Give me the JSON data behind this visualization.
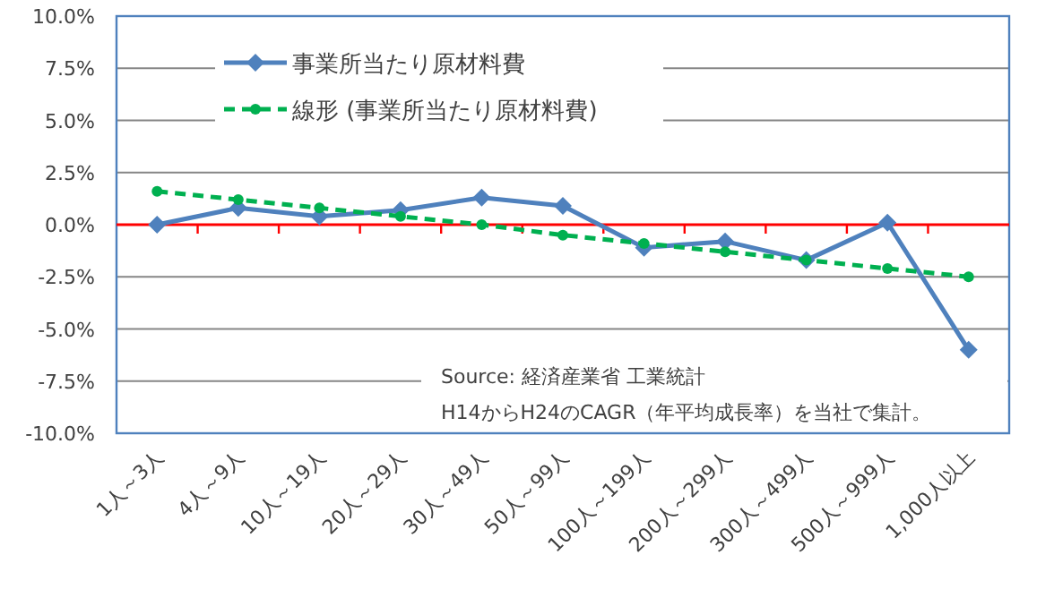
{
  "chart_data": {
    "type": "line",
    "categories": [
      "1人～3人",
      "4人～9人",
      "10人～19人",
      "20人～29人",
      "30人～49人",
      "50人～99人",
      "100人～199人",
      "200人～299人",
      "300人～499人",
      "500人～999人",
      "1,000人以上"
    ],
    "series": [
      {
        "name": "事業所当たり原材料費",
        "color": "#4f81bd",
        "marker": "diamond",
        "line_style": "solid",
        "values": [
          0.0,
          0.8,
          0.4,
          0.7,
          1.3,
          0.9,
          -1.1,
          -0.8,
          -1.7,
          0.1,
          -6.0
        ]
      },
      {
        "name": "線形 (事業所当たり原材料費)",
        "color": "#00b050",
        "marker": "circle",
        "line_style": "dashed",
        "values": [
          1.6,
          1.2,
          0.8,
          0.4,
          0.0,
          -0.5,
          -0.9,
          -1.3,
          -1.7,
          -2.1,
          -2.5
        ]
      }
    ],
    "ylim": [
      -10,
      10
    ],
    "yticks": [
      {
        "value": -10,
        "label": "-10.0%"
      },
      {
        "value": -7.5,
        "label": "-7.5%"
      },
      {
        "value": -5,
        "label": "-5.0%"
      },
      {
        "value": -2.5,
        "label": "-2.5%"
      },
      {
        "value": 0,
        "label": "0.0%"
      },
      {
        "value": 2.5,
        "label": "2.5%"
      },
      {
        "value": 5,
        "label": "5.0%"
      },
      {
        "value": 7.5,
        "label": "7.5%"
      },
      {
        "value": 10,
        "label": "10.0%"
      }
    ],
    "ref_lines": [
      {
        "axis": "y",
        "value": 0,
        "color": "#ff0000"
      }
    ],
    "grid": "y",
    "legend": "top left",
    "annotations": [
      "Source: 経済産業省 工業統計",
      "H14からH24のCAGR（年平均成長率）を当社で集計。"
    ]
  }
}
